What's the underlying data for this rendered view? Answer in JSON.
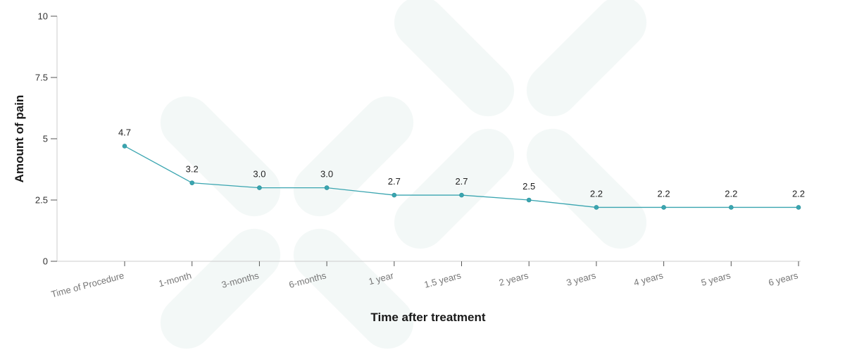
{
  "chart_data": {
    "type": "line",
    "categories": [
      "Time of Procedure",
      "1-month",
      "3-months",
      "6-months",
      "1 year",
      "1.5 years",
      "2 years",
      "3 years",
      "4 years",
      "5 years",
      "6 years"
    ],
    "series": [
      {
        "values": [
          4.7,
          3.2,
          3.0,
          3.0,
          2.7,
          2.7,
          2.5,
          2.2,
          2.2,
          2.2,
          2.2
        ],
        "data_labels": [
          "4.7",
          "3.2",
          "3.0",
          "3.0",
          "2.7",
          "2.7",
          "2.5",
          "2.2",
          "2.2",
          "2.2",
          "2.2"
        ],
        "color": "#3aa5b0"
      }
    ],
    "xlabel": "Time after treatment",
    "ylabel": "Amount of pain",
    "ylim": [
      0,
      10
    ],
    "yticks": [
      0,
      2.5,
      5,
      7.5,
      10
    ],
    "ytick_labels": [
      "0",
      "2.5",
      "5",
      "7.5",
      "10"
    ],
    "grid": false,
    "axis_color": "#cccccc"
  }
}
